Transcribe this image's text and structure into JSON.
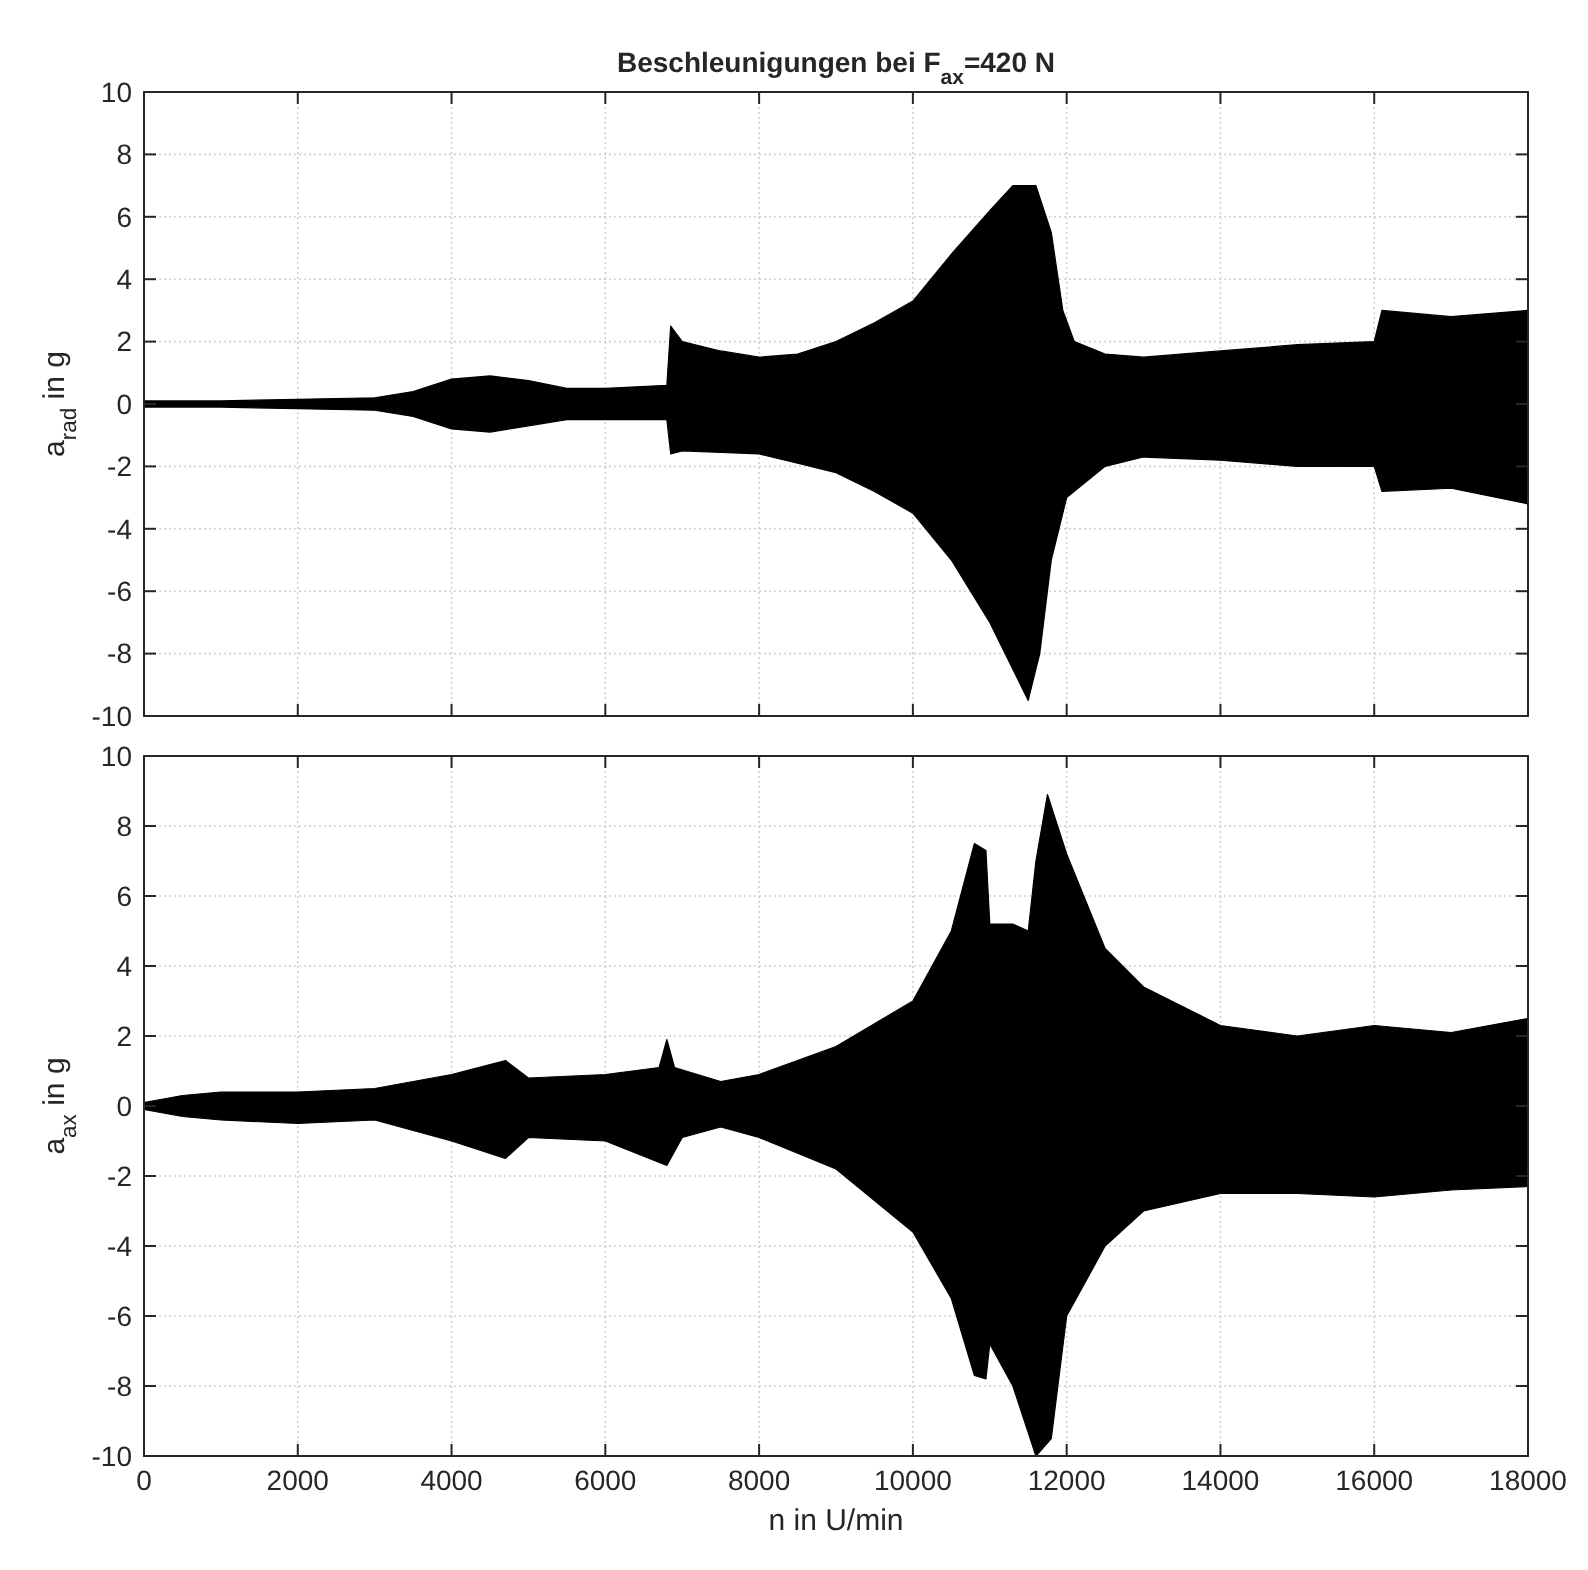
{
  "chart_data": [
    {
      "type": "area",
      "title": "Beschleunigungen bei F$_{ax}$=420 N",
      "ylabel": "a$_{rad}$ in g",
      "xlim": [
        0,
        18000
      ],
      "xticks": [
        0,
        2000,
        4000,
        6000,
        8000,
        10000,
        12000,
        14000,
        16000,
        18000
      ],
      "ylim": [
        -10,
        10
      ],
      "yticks": [
        -10,
        -8,
        -6,
        -4,
        -2,
        0,
        2,
        4,
        6,
        8,
        10
      ],
      "grid": true,
      "tick_labels": "y",
      "series": [
        {
          "color": "#000000",
          "x": [
            0,
            1000,
            2000,
            3000,
            3500,
            4000,
            4500,
            5000,
            5500,
            6000,
            6800,
            6850,
            7000,
            7500,
            8000,
            8500,
            9000,
            9500,
            10000,
            10500,
            11000,
            11300,
            11600,
            11800,
            11950,
            12100,
            12500,
            13000,
            14000,
            15000,
            16000,
            16100,
            17000,
            18000
          ],
          "values": [
            0.1,
            0.1,
            0.15,
            0.2,
            0.4,
            0.8,
            0.9,
            0.75,
            0.5,
            0.5,
            0.6,
            2.5,
            2.0,
            1.7,
            1.5,
            1.6,
            2.0,
            2.6,
            3.3,
            4.8,
            6.2,
            7.0,
            7.0,
            5.5,
            3.0,
            2.0,
            1.6,
            1.5,
            1.7,
            1.9,
            2.0,
            3.0,
            2.8,
            3.0
          ]
        },
        {
          "color": "#000000",
          "x": [
            0,
            1000,
            2000,
            3000,
            3500,
            4000,
            4500,
            5000,
            5500,
            6000,
            6800,
            6850,
            7000,
            8000,
            8500,
            9000,
            9500,
            10000,
            10500,
            11000,
            11300,
            11500,
            11650,
            11800,
            12000,
            12500,
            13000,
            14000,
            15000,
            16000,
            16100,
            17000,
            18000
          ],
          "values": [
            -0.1,
            -0.1,
            -0.15,
            -0.2,
            -0.4,
            -0.8,
            -0.9,
            -0.7,
            -0.5,
            -0.5,
            -0.5,
            -1.6,
            -1.5,
            -1.6,
            -1.9,
            -2.2,
            -2.8,
            -3.5,
            -5.0,
            -7.0,
            -8.5,
            -9.5,
            -8.0,
            -5.0,
            -3.0,
            -2.0,
            -1.7,
            -1.8,
            -2.0,
            -2.0,
            -2.8,
            -2.7,
            -3.2
          ]
        }
      ]
    },
    {
      "type": "area",
      "ylabel": "a$_{ax}$ in g",
      "xlabel": "n in U/min",
      "xlim": [
        0,
        18000
      ],
      "xticks": [
        0,
        2000,
        4000,
        6000,
        8000,
        10000,
        12000,
        14000,
        16000,
        18000
      ],
      "ylim": [
        -10,
        10
      ],
      "yticks": [
        -10,
        -8,
        -6,
        -4,
        -2,
        0,
        2,
        4,
        6,
        8,
        10
      ],
      "grid": true,
      "series": [
        {
          "color": "#000000",
          "x": [
            0,
            500,
            1000,
            2000,
            3000,
            4000,
            4700,
            5000,
            6000,
            6700,
            6800,
            6900,
            7500,
            8000,
            9000,
            10000,
            10500,
            10800,
            10950,
            11000,
            11300,
            11500,
            11600,
            11750,
            12000,
            12500,
            13000,
            14000,
            15000,
            16000,
            17000,
            18000
          ],
          "values": [
            0.1,
            0.3,
            0.4,
            0.4,
            0.5,
            0.9,
            1.3,
            0.8,
            0.9,
            1.1,
            1.9,
            1.1,
            0.7,
            0.9,
            1.7,
            3.0,
            5.0,
            7.5,
            7.3,
            5.2,
            5.2,
            5.0,
            7.0,
            8.9,
            7.2,
            4.5,
            3.4,
            2.3,
            2.0,
            2.3,
            2.1,
            2.5
          ]
        },
        {
          "color": "#000000",
          "x": [
            0,
            500,
            1000,
            2000,
            3000,
            4000,
            4700,
            5000,
            6000,
            6800,
            7000,
            7500,
            8000,
            9000,
            10000,
            10500,
            10800,
            10950,
            11000,
            11300,
            11600,
            11800,
            12000,
            12500,
            13000,
            14000,
            15000,
            16000,
            17000,
            18000
          ],
          "values": [
            -0.1,
            -0.3,
            -0.4,
            -0.5,
            -0.4,
            -1.0,
            -1.5,
            -0.9,
            -1.0,
            -1.7,
            -0.9,
            -0.6,
            -0.9,
            -1.8,
            -3.6,
            -5.5,
            -7.7,
            -7.8,
            -6.8,
            -8.0,
            -10,
            -9.5,
            -6.0,
            -4.0,
            -3.0,
            -2.5,
            -2.5,
            -2.6,
            -2.4,
            -2.3
          ]
        }
      ]
    }
  ]
}
